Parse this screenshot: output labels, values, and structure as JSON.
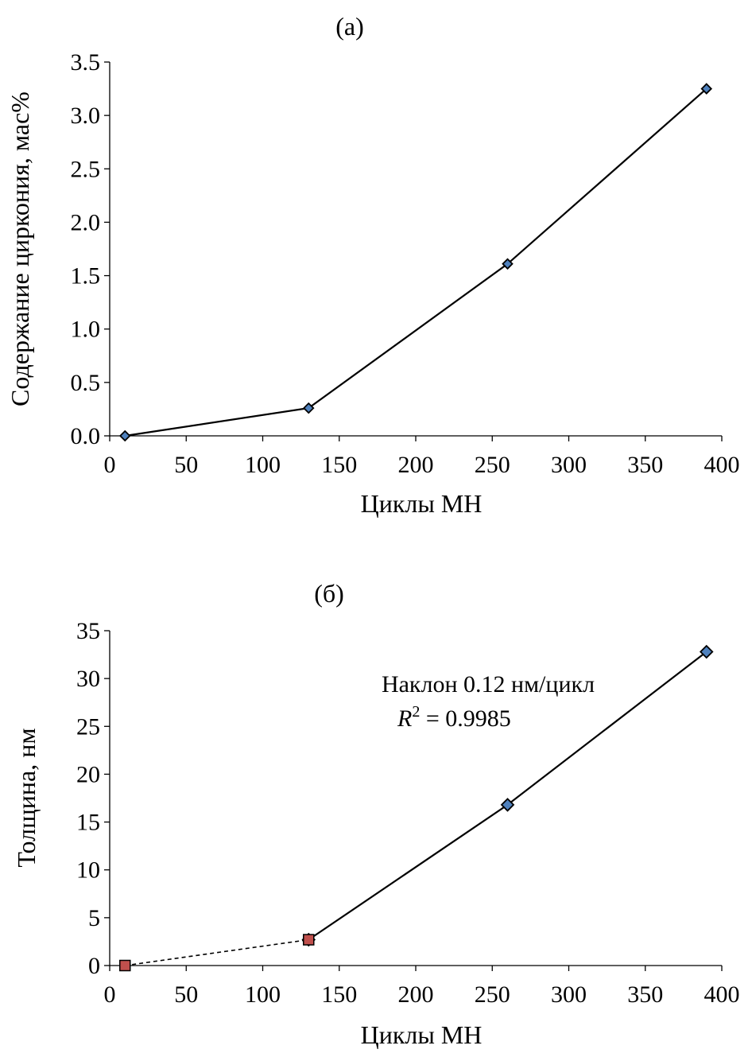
{
  "chart_data": [
    {
      "type": "line",
      "title": "(a)",
      "xlabel": "Циклы МН",
      "ylabel": "Содержание циркония, мас%",
      "xlim": [
        0,
        400
      ],
      "ylim": [
        0,
        3.5
      ],
      "xticks": [
        "0",
        "50",
        "100",
        "150",
        "200",
        "250",
        "300",
        "350",
        "400"
      ],
      "yticks": [
        "0.0",
        "0.5",
        "1.0",
        "1.5",
        "2.0",
        "2.5",
        "3.0",
        "3.5"
      ],
      "grid": false,
      "series": [
        {
          "color": "#4f81bd",
          "marker": "diamond",
          "line": "solid",
          "points": [
            {
              "x": 10,
              "y": 0.0
            },
            {
              "x": 130,
              "y": 0.26
            },
            {
              "x": 260,
              "y": 1.61
            },
            {
              "x": 390,
              "y": 3.25
            }
          ]
        }
      ]
    },
    {
      "type": "line",
      "title": "(б)",
      "xlabel": "Циклы МН",
      "ylabel": "Толщина, нм",
      "xlim": [
        0,
        400
      ],
      "ylim": [
        0,
        35
      ],
      "xticks": [
        "0",
        "50",
        "100",
        "150",
        "200",
        "250",
        "300",
        "350",
        "400"
      ],
      "yticks": [
        "0",
        "5",
        "10",
        "15",
        "20",
        "25",
        "30",
        "35"
      ],
      "grid": false,
      "annotation": {
        "line1": "Наклон 0.12 нм/цикл",
        "r_symbol": "R",
        "r_exp": "2",
        "r_value": " = 0.9985"
      },
      "series": [
        {
          "color": "#4f81bd",
          "marker": "diamond",
          "line": "solid",
          "points": [
            {
              "x": 130,
              "y": 2.7
            },
            {
              "x": 260,
              "y": 16.8
            },
            {
              "x": 390,
              "y": 32.8
            }
          ]
        },
        {
          "color": "#c0504d",
          "marker": "square",
          "line": "dashed",
          "points": [
            {
              "x": 10,
              "y": 0.0
            },
            {
              "x": 130,
              "y": 2.7
            }
          ]
        }
      ]
    }
  ]
}
